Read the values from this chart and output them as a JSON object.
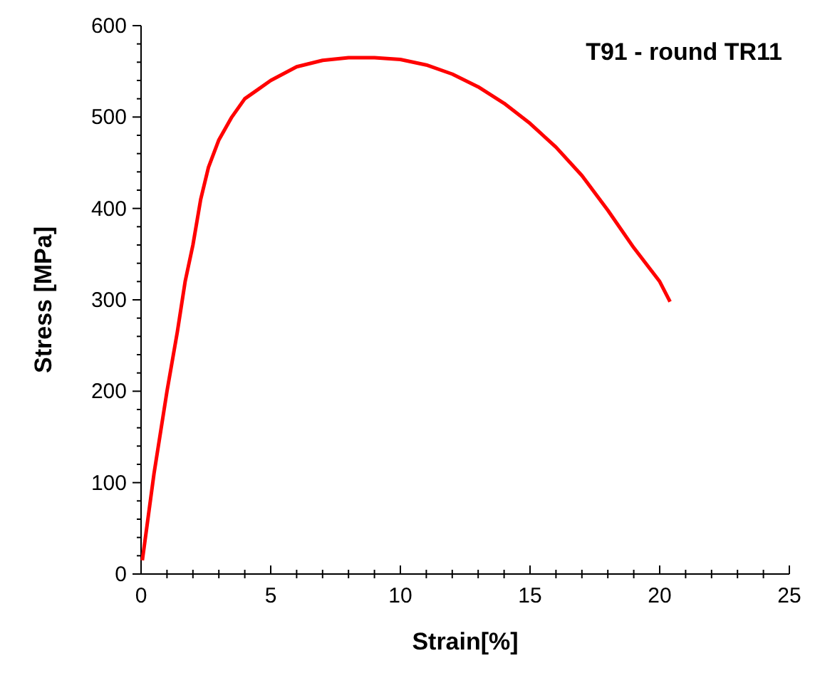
{
  "chart_data": {
    "type": "line",
    "xlabel": "Strain[%]",
    "ylabel": "Stress [MPa]",
    "annotations": [
      "T91 - round TR11"
    ],
    "xlim": [
      0,
      25
    ],
    "ylim": [
      0,
      600
    ],
    "xticks": [
      0,
      {
        "value": 1,
        "label": null
      },
      {
        "value": 2,
        "label": null
      },
      {
        "value": 3,
        "label": null
      },
      {
        "value": 4,
        "label": null
      },
      5,
      {
        "value": 6,
        "label": null
      },
      {
        "value": 7,
        "label": null
      },
      {
        "value": 8,
        "label": null
      },
      {
        "value": 9,
        "label": null
      },
      10,
      {
        "value": 11,
        "label": null
      },
      {
        "value": 12,
        "label": null
      },
      {
        "value": 13,
        "label": null
      },
      {
        "value": 14,
        "label": null
      },
      15,
      {
        "value": 16,
        "label": null
      },
      {
        "value": 17,
        "label": null
      },
      {
        "value": 18,
        "label": null
      },
      {
        "value": 19,
        "label": null
      },
      20,
      {
        "value": 21,
        "label": null
      },
      {
        "value": 22,
        "label": null
      },
      {
        "value": 23,
        "label": null
      },
      {
        "value": 24,
        "label": null
      },
      25
    ],
    "yticks": [
      0,
      {
        "value": 20,
        "label": null
      },
      {
        "value": 40,
        "label": null
      },
      {
        "value": 60,
        "label": null
      },
      {
        "value": 80,
        "label": null
      },
      100,
      {
        "value": 120,
        "label": null
      },
      {
        "value": 140,
        "label": null
      },
      {
        "value": 160,
        "label": null
      },
      {
        "value": 180,
        "label": null
      },
      200,
      {
        "value": 220,
        "label": null
      },
      {
        "value": 240,
        "label": null
      },
      {
        "value": 260,
        "label": null
      },
      {
        "value": 280,
        "label": null
      },
      300,
      {
        "value": 320,
        "label": null
      },
      {
        "value": 340,
        "label": null
      },
      {
        "value": 360,
        "label": null
      },
      {
        "value": 380,
        "label": null
      },
      400,
      {
        "value": 420,
        "label": null
      },
      {
        "value": 440,
        "label": null
      },
      {
        "value": 460,
        "label": null
      },
      {
        "value": 480,
        "label": null
      },
      500,
      {
        "value": 520,
        "label": null
      },
      {
        "value": 540,
        "label": null
      },
      {
        "value": 560,
        "label": null
      },
      {
        "value": 580,
        "label": null
      },
      600
    ],
    "marker": "none",
    "line_style": "solid",
    "series": [
      {
        "color": "#ff0000",
        "x": [
          0.05,
          0.5,
          1,
          1.4,
          1.7,
          2,
          2.3,
          2.6,
          3,
          3.5,
          4,
          4.5,
          5,
          6,
          7,
          8,
          9,
          10,
          11,
          12,
          13,
          14,
          15,
          16,
          17,
          18,
          19,
          20,
          20.4
        ],
        "values": [
          15,
          110,
          200,
          265,
          320,
          360,
          410,
          445,
          475,
          500,
          520,
          530,
          540,
          555,
          562,
          565,
          565,
          563,
          557,
          547,
          533,
          515,
          493,
          467,
          436,
          398,
          357,
          320,
          298
        ]
      }
    ]
  }
}
